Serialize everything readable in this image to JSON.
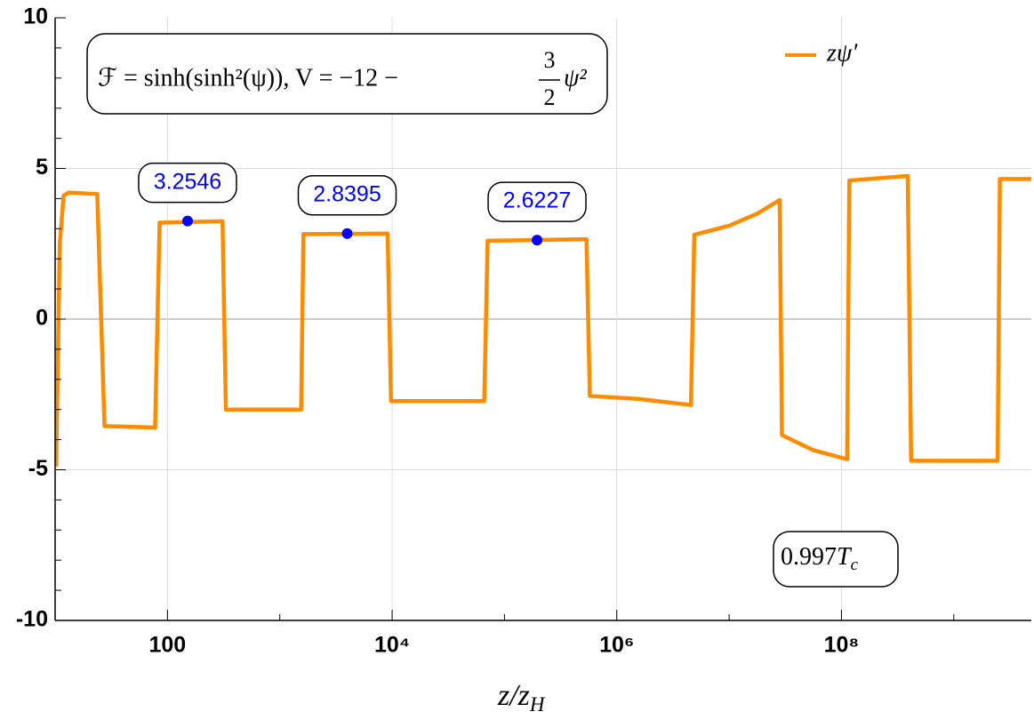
{
  "chart_data": {
    "type": "line",
    "xlabel": {
      "main": "z/z",
      "subscript": "H"
    },
    "formula": {
      "main": "ℱ = sinh(sinh²(ψ)), V = −12 −",
      "numerator": "3",
      "denominator": "2",
      "tail": "ψ²"
    },
    "temperature_label": {
      "main": "0.997",
      "symbol": "T",
      "subscript": "c"
    },
    "log_x": true,
    "grid": true,
    "legend": "upper right",
    "xlim": [
      10,
      4900000000
    ],
    "ylim": [
      -10,
      10
    ],
    "xticks": [
      100,
      {
        "value": 10000,
        "label": "10⁴"
      },
      {
        "value": 1000000,
        "label": "10⁶"
      },
      {
        "value": 100000000,
        "label": "10⁸"
      }
    ],
    "xminorticks": [
      10,
      1000,
      100000,
      10000000,
      1000000000
    ],
    "yticks": [
      -10,
      -5,
      0,
      5,
      10
    ],
    "yminorticks": [
      -9,
      -8,
      -7,
      -6,
      -4,
      -3,
      -2,
      -1,
      1,
      2,
      3,
      4,
      6,
      7,
      8,
      9
    ],
    "series": [
      {
        "name": "zψ′",
        "color": "#ff8c00",
        "x": [
          10.2,
          11,
          11.9,
          13.2,
          23.7,
          27.5,
          77.6,
          85.1,
          309,
          331,
          1549,
          1622,
          9120,
          9772,
          66070,
          70795,
          537000,
          575400,
          1585000,
          4571000,
          4898000,
          10000000,
          17780000,
          28180000,
          29510000,
          56230000,
          112200000,
          117500000,
          389000000,
          416900000,
          2455000000,
          2570000000,
          4900000000
        ],
        "values": [
          -4.9,
          2.5,
          4.1,
          4.2,
          4.15,
          -3.55,
          -3.6,
          3.2,
          3.25,
          -3.0,
          -3.0,
          2.82,
          2.84,
          -2.72,
          -2.72,
          2.6,
          2.65,
          -2.55,
          -2.65,
          -2.85,
          2.8,
          3.1,
          3.5,
          3.95,
          -3.85,
          -4.35,
          -4.65,
          4.6,
          4.75,
          -4.7,
          -4.7,
          4.65,
          4.65
        ]
      }
    ],
    "points": {
      "color": "#0000ff",
      "x": [
        151,
        3981,
        195000
      ],
      "values": [
        3.2546,
        2.8395,
        2.6227
      ]
    }
  }
}
